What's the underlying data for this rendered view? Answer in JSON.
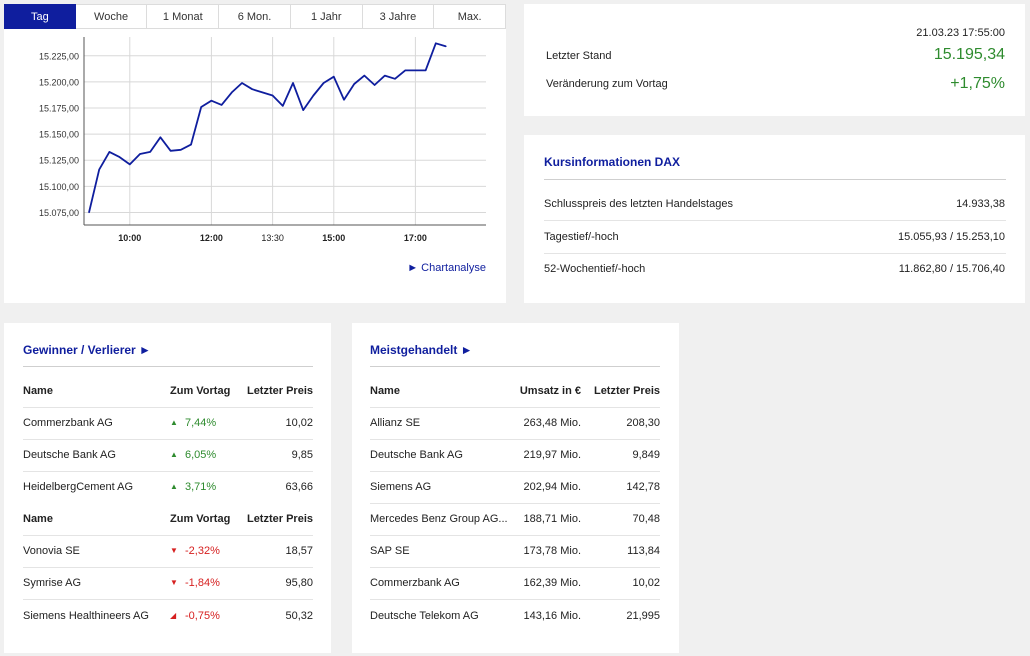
{
  "tabs": [
    "Tag",
    "Woche",
    "1 Monat",
    "6 Mon.",
    "1 Jahr",
    "3 Jahre",
    "Max."
  ],
  "chart_link": "► Chartanalyse",
  "chart_data": {
    "type": "line",
    "x": [
      "09:00",
      "09:15",
      "09:30",
      "09:45",
      "10:00",
      "10:15",
      "10:30",
      "10:45",
      "11:00",
      "11:15",
      "11:30",
      "11:45",
      "12:00",
      "12:15",
      "12:30",
      "12:45",
      "13:00",
      "13:15",
      "13:30",
      "13:45",
      "14:00",
      "14:15",
      "14:30",
      "14:45",
      "15:00",
      "15:15",
      "15:30",
      "15:45",
      "16:00",
      "16:15",
      "16:30",
      "16:45",
      "17:00",
      "17:15",
      "17:30",
      "17:45"
    ],
    "values": [
      15075,
      15116,
      15133,
      15128,
      15121,
      15131,
      15133,
      15147,
      15134,
      15135,
      15140,
      15176,
      15182,
      15178,
      15190,
      15199,
      15193,
      15190,
      15187,
      15177,
      15199,
      15173,
      15187,
      15199,
      15205,
      15183,
      15198,
      15206,
      15197,
      15206,
      15203,
      15211,
      15211,
      15211,
      15237,
      15234
    ],
    "y_ticks": [
      "15.075,00",
      "15.100,00",
      "15.125,00",
      "15.150,00",
      "15.175,00",
      "15.200,00",
      "15.225,00"
    ],
    "x_ticks": [
      "10:00",
      "12:00",
      "13:30",
      "15:00",
      "17:00"
    ],
    "ylim": [
      15063,
      15243
    ],
    "color": "#0f1e9e",
    "grid": true
  },
  "quote": {
    "date": "21.03.23 17:55:00",
    "last_label": "Letzter Stand",
    "last_value": "15.195,34",
    "change_label": "Veränderung zum Vortag",
    "change_value": "+1,75%"
  },
  "info": {
    "title": "Kursinformationen DAX",
    "rows": [
      {
        "label": "Schlusspreis des letzten Handelstages",
        "value": "14.933,38"
      },
      {
        "label": "Tagestief/-hoch",
        "value": "15.055,93 / 15.253,10"
      },
      {
        "label": "52-Wochentief/-hoch",
        "value": "11.862,80 / 15.706,40"
      }
    ]
  },
  "gainers_losers": {
    "title": "Gewinner / Verlierer ►",
    "header": {
      "name": "Name",
      "change": "Zum Vortag",
      "price": "Letzter Preis"
    },
    "gainers": [
      {
        "name": "Commerzbank AG",
        "change": "7,44%",
        "price": "10,02"
      },
      {
        "name": "Deutsche Bank AG",
        "change": "6,05%",
        "price": "9,85"
      },
      {
        "name": "HeidelbergCement AG",
        "change": "3,71%",
        "price": "63,66"
      }
    ],
    "losers": [
      {
        "name": "Vonovia SE",
        "change": "-2,32%",
        "price": "18,57"
      },
      {
        "name": "Symrise AG",
        "change": "-1,84%",
        "price": "95,80"
      },
      {
        "name": "Siemens Healthineers AG",
        "change": "-0,75%",
        "price": "50,32"
      }
    ]
  },
  "most_traded": {
    "title": "Meistgehandelt ►",
    "header": {
      "name": "Name",
      "volume": "Umsatz in €",
      "price": "Letzter Preis"
    },
    "rows": [
      {
        "name": "Allianz SE",
        "volume": "263,48 Mio.",
        "price": "208,30"
      },
      {
        "name": "Deutsche Bank AG",
        "volume": "219,97 Mio.",
        "price": "9,849"
      },
      {
        "name": "Siemens AG",
        "volume": "202,94 Mio.",
        "price": "142,78"
      },
      {
        "name": "Mercedes Benz Group AG...",
        "volume": "188,71 Mio.",
        "price": "70,48"
      },
      {
        "name": "SAP SE",
        "volume": "173,78 Mio.",
        "price": "113,84"
      },
      {
        "name": "Commerzbank AG",
        "volume": "162,39 Mio.",
        "price": "10,02"
      },
      {
        "name": "Deutsche Telekom AG",
        "volume": "143,16 Mio.",
        "price": "21,995"
      }
    ]
  }
}
